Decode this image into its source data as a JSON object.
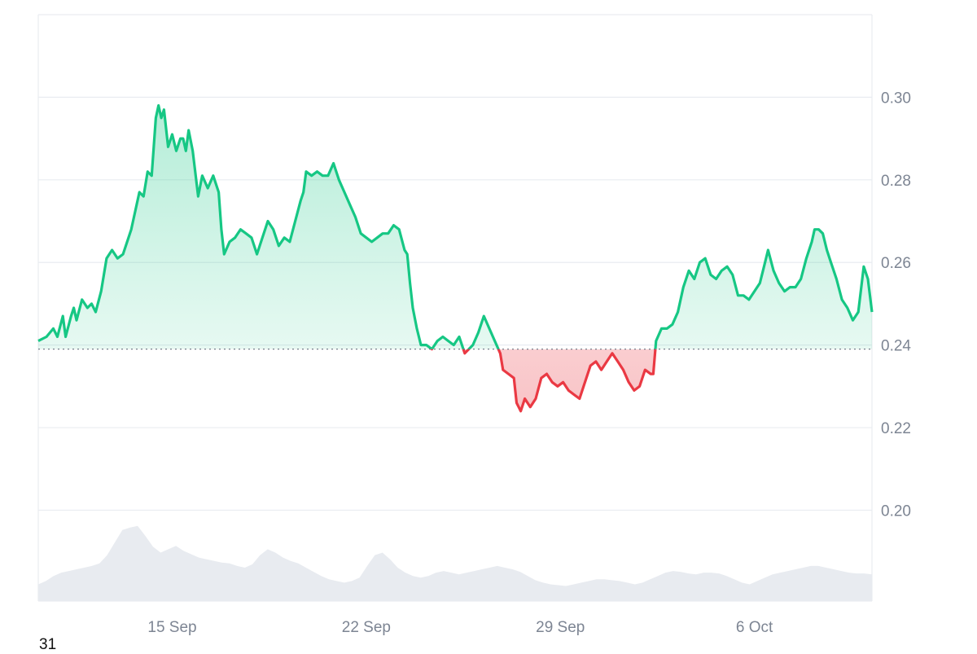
{
  "colors": {
    "up": "#16c784",
    "down": "#ea3943",
    "grid": "#e9ecf1",
    "baseline": "#6b7280",
    "volume": "#e8ebf0",
    "tick_text": "#7d8593"
  },
  "footer_text": "31",
  "chart_data": {
    "type": "area",
    "baseline_value": 0.239,
    "ylim": [
      0.178,
      0.32
    ],
    "yticks": [
      {
        "value": 0.3,
        "label": "0.30"
      },
      {
        "value": 0.28,
        "label": "0.28"
      },
      {
        "value": 0.26,
        "label": "0.26"
      },
      {
        "value": 0.24,
        "label": "0.24"
      },
      {
        "value": 0.22,
        "label": "0.22"
      },
      {
        "value": 0.2,
        "label": "0.20"
      }
    ],
    "xlim": [
      0,
      30.5
    ],
    "xticks": [
      {
        "value": 4.9,
        "label": "15 Sep"
      },
      {
        "value": 12.0,
        "label": "22 Sep"
      },
      {
        "value": 19.1,
        "label": "29 Sep"
      },
      {
        "value": 26.2,
        "label": "6 Oct"
      }
    ],
    "series": [
      {
        "values": [
          [
            0.0,
            0.241
          ],
          [
            0.3,
            0.242
          ],
          [
            0.55,
            0.244
          ],
          [
            0.7,
            0.242
          ],
          [
            0.9,
            0.247
          ],
          [
            1.0,
            0.242
          ],
          [
            1.2,
            0.247
          ],
          [
            1.3,
            0.249
          ],
          [
            1.4,
            0.246
          ],
          [
            1.6,
            0.251
          ],
          [
            1.8,
            0.249
          ],
          [
            1.95,
            0.25
          ],
          [
            2.1,
            0.248
          ],
          [
            2.3,
            0.253
          ],
          [
            2.5,
            0.261
          ],
          [
            2.7,
            0.263
          ],
          [
            2.9,
            0.261
          ],
          [
            3.1,
            0.262
          ],
          [
            3.4,
            0.268
          ],
          [
            3.7,
            0.277
          ],
          [
            3.85,
            0.276
          ],
          [
            4.0,
            0.282
          ],
          [
            4.15,
            0.281
          ],
          [
            4.3,
            0.295
          ],
          [
            4.4,
            0.298
          ],
          [
            4.5,
            0.295
          ],
          [
            4.6,
            0.297
          ],
          [
            4.75,
            0.288
          ],
          [
            4.9,
            0.291
          ],
          [
            5.05,
            0.287
          ],
          [
            5.2,
            0.29
          ],
          [
            5.3,
            0.29
          ],
          [
            5.4,
            0.287
          ],
          [
            5.5,
            0.292
          ],
          [
            5.65,
            0.287
          ],
          [
            5.85,
            0.276
          ],
          [
            6.0,
            0.281
          ],
          [
            6.2,
            0.278
          ],
          [
            6.4,
            0.281
          ],
          [
            6.6,
            0.277
          ],
          [
            6.7,
            0.268
          ],
          [
            6.8,
            0.262
          ],
          [
            7.0,
            0.265
          ],
          [
            7.2,
            0.266
          ],
          [
            7.4,
            0.268
          ],
          [
            7.6,
            0.267
          ],
          [
            7.8,
            0.266
          ],
          [
            8.0,
            0.262
          ],
          [
            8.2,
            0.266
          ],
          [
            8.4,
            0.27
          ],
          [
            8.6,
            0.268
          ],
          [
            8.8,
            0.264
          ],
          [
            9.0,
            0.266
          ],
          [
            9.2,
            0.265
          ],
          [
            9.4,
            0.27
          ],
          [
            9.6,
            0.275
          ],
          [
            9.7,
            0.277
          ],
          [
            9.8,
            0.282
          ],
          [
            10.0,
            0.281
          ],
          [
            10.2,
            0.282
          ],
          [
            10.4,
            0.281
          ],
          [
            10.6,
            0.281
          ],
          [
            10.8,
            0.284
          ],
          [
            11.0,
            0.28
          ],
          [
            11.2,
            0.277
          ],
          [
            11.4,
            0.274
          ],
          [
            11.6,
            0.271
          ],
          [
            11.8,
            0.267
          ],
          [
            12.0,
            0.266
          ],
          [
            12.2,
            0.265
          ],
          [
            12.4,
            0.266
          ],
          [
            12.6,
            0.267
          ],
          [
            12.8,
            0.267
          ],
          [
            13.0,
            0.269
          ],
          [
            13.2,
            0.268
          ],
          [
            13.4,
            0.263
          ],
          [
            13.5,
            0.262
          ],
          [
            13.6,
            0.255
          ],
          [
            13.7,
            0.249
          ],
          [
            13.85,
            0.244
          ],
          [
            14.0,
            0.24
          ],
          [
            14.2,
            0.24
          ],
          [
            14.4,
            0.239
          ],
          [
            14.6,
            0.241
          ],
          [
            14.8,
            0.242
          ],
          [
            15.0,
            0.241
          ],
          [
            15.2,
            0.24
          ],
          [
            15.4,
            0.242
          ],
          [
            15.6,
            0.238
          ],
          [
            15.9,
            0.24
          ],
          [
            16.1,
            0.243
          ],
          [
            16.3,
            0.247
          ],
          [
            16.5,
            0.244
          ],
          [
            16.7,
            0.241
          ],
          [
            16.9,
            0.238
          ],
          [
            17.0,
            0.234
          ],
          [
            17.2,
            0.233
          ],
          [
            17.4,
            0.232
          ],
          [
            17.5,
            0.226
          ],
          [
            17.65,
            0.224
          ],
          [
            17.8,
            0.227
          ],
          [
            18.0,
            0.225
          ],
          [
            18.2,
            0.227
          ],
          [
            18.4,
            0.232
          ],
          [
            18.6,
            0.233
          ],
          [
            18.8,
            0.231
          ],
          [
            19.0,
            0.23
          ],
          [
            19.2,
            0.231
          ],
          [
            19.4,
            0.229
          ],
          [
            19.6,
            0.228
          ],
          [
            19.8,
            0.227
          ],
          [
            20.0,
            0.231
          ],
          [
            20.2,
            0.235
          ],
          [
            20.4,
            0.236
          ],
          [
            20.6,
            0.234
          ],
          [
            20.8,
            0.236
          ],
          [
            21.0,
            0.238
          ],
          [
            21.2,
            0.236
          ],
          [
            21.4,
            0.234
          ],
          [
            21.6,
            0.231
          ],
          [
            21.8,
            0.229
          ],
          [
            22.0,
            0.23
          ],
          [
            22.2,
            0.234
          ],
          [
            22.4,
            0.233
          ],
          [
            22.5,
            0.233
          ],
          [
            22.6,
            0.241
          ],
          [
            22.8,
            0.244
          ],
          [
            23.0,
            0.244
          ],
          [
            23.2,
            0.245
          ],
          [
            23.4,
            0.248
          ],
          [
            23.6,
            0.254
          ],
          [
            23.8,
            0.258
          ],
          [
            24.0,
            0.256
          ],
          [
            24.2,
            0.26
          ],
          [
            24.4,
            0.261
          ],
          [
            24.6,
            0.257
          ],
          [
            24.8,
            0.256
          ],
          [
            25.0,
            0.258
          ],
          [
            25.2,
            0.259
          ],
          [
            25.4,
            0.257
          ],
          [
            25.6,
            0.252
          ],
          [
            25.8,
            0.252
          ],
          [
            26.0,
            0.251
          ],
          [
            26.2,
            0.253
          ],
          [
            26.4,
            0.255
          ],
          [
            26.55,
            0.259
          ],
          [
            26.7,
            0.263
          ],
          [
            26.9,
            0.258
          ],
          [
            27.1,
            0.255
          ],
          [
            27.3,
            0.253
          ],
          [
            27.5,
            0.254
          ],
          [
            27.7,
            0.254
          ],
          [
            27.9,
            0.256
          ],
          [
            28.1,
            0.261
          ],
          [
            28.3,
            0.265
          ],
          [
            28.4,
            0.268
          ],
          [
            28.55,
            0.268
          ],
          [
            28.7,
            0.267
          ],
          [
            28.85,
            0.263
          ],
          [
            29.0,
            0.26
          ],
          [
            29.2,
            0.256
          ],
          [
            29.4,
            0.251
          ],
          [
            29.6,
            0.249
          ],
          [
            29.8,
            0.246
          ],
          [
            30.0,
            0.248
          ],
          [
            30.2,
            0.259
          ],
          [
            30.35,
            0.256
          ],
          [
            30.5,
            0.248
          ]
        ]
      }
    ],
    "volume": [
      0.2,
      0.24,
      0.3,
      0.34,
      0.36,
      0.38,
      0.4,
      0.42,
      0.45,
      0.55,
      0.7,
      0.85,
      0.88,
      0.9,
      0.78,
      0.65,
      0.58,
      0.62,
      0.66,
      0.6,
      0.56,
      0.52,
      0.5,
      0.48,
      0.46,
      0.45,
      0.42,
      0.4,
      0.44,
      0.55,
      0.62,
      0.58,
      0.52,
      0.48,
      0.45,
      0.4,
      0.35,
      0.3,
      0.26,
      0.24,
      0.22,
      0.24,
      0.28,
      0.42,
      0.55,
      0.58,
      0.5,
      0.4,
      0.34,
      0.3,
      0.28,
      0.3,
      0.34,
      0.36,
      0.34,
      0.32,
      0.34,
      0.36,
      0.38,
      0.4,
      0.42,
      0.4,
      0.38,
      0.35,
      0.3,
      0.25,
      0.22,
      0.2,
      0.19,
      0.18,
      0.2,
      0.22,
      0.24,
      0.26,
      0.26,
      0.25,
      0.24,
      0.22,
      0.2,
      0.22,
      0.26,
      0.3,
      0.34,
      0.36,
      0.35,
      0.33,
      0.32,
      0.34,
      0.34,
      0.33,
      0.3,
      0.26,
      0.22,
      0.2,
      0.24,
      0.28,
      0.32,
      0.34,
      0.36,
      0.38,
      0.4,
      0.42,
      0.42,
      0.4,
      0.38,
      0.36,
      0.34,
      0.33,
      0.33,
      0.32
    ]
  }
}
